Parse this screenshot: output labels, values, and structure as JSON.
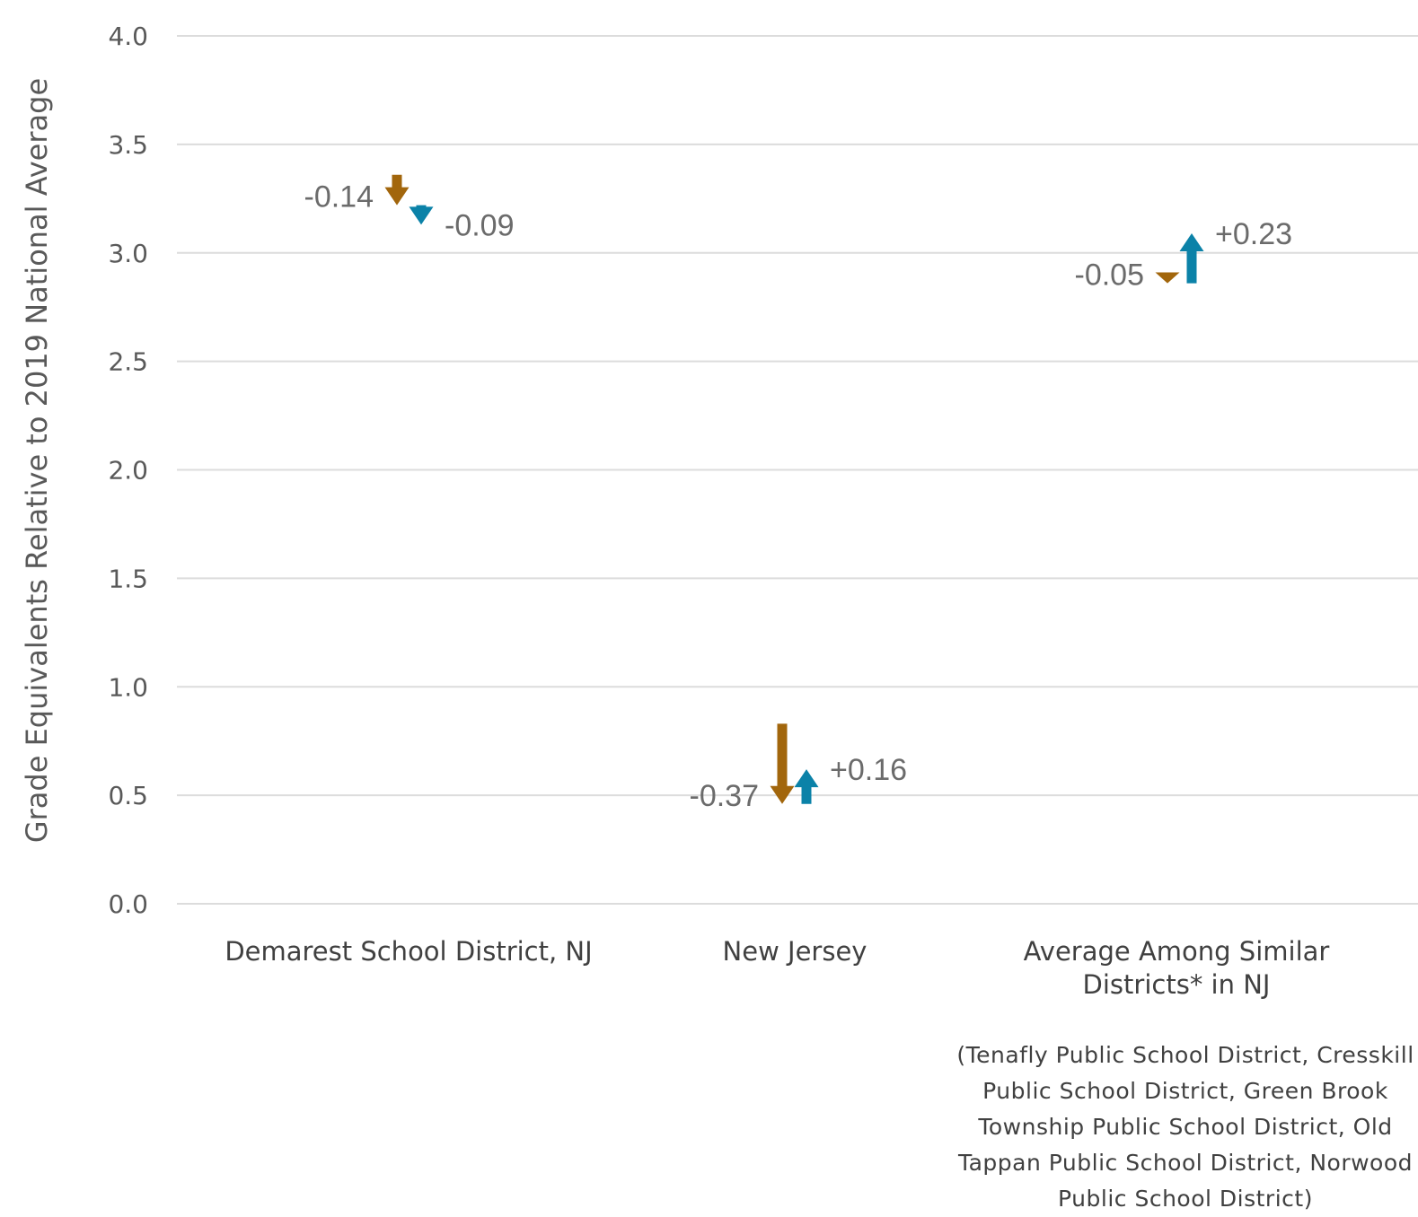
{
  "chart_data": {
    "type": "arrow",
    "ylabel": "Grade Equivalents Relative to 2019 National Average",
    "ylim": [
      0,
      4.0
    ],
    "yticks": [
      "0.0",
      "0.5",
      "1.0",
      "1.5",
      "2.0",
      "2.5",
      "3.0",
      "3.5",
      "4.0"
    ],
    "grid": true,
    "categories": [
      {
        "label_lines": [
          "Demarest School District, NJ"
        ]
      },
      {
        "label_lines": [
          "New Jersey"
        ]
      },
      {
        "label_lines": [
          "Average Among Similar",
          "Districts* in NJ"
        ]
      }
    ],
    "series": [
      {
        "color": "#a2660c",
        "start": [
          3.36,
          0.83,
          2.91
        ],
        "end": [
          3.22,
          0.46,
          2.86
        ],
        "labels": [
          "-0.14",
          "-0.37",
          "-0.05"
        ]
      },
      {
        "color": "#0b82a8",
        "start": [
          3.22,
          0.46,
          2.86
        ],
        "end": [
          3.13,
          0.62,
          3.09
        ],
        "labels": [
          "-0.09",
          "+0.16",
          "+0.23"
        ]
      }
    ]
  },
  "footnote_lines": [
    "(Tenafly Public School District, Cresskill",
    "Public School District, Green Brook",
    "Township Public School District, Old",
    "Tappan Public School District, Norwood",
    "Public School District)"
  ]
}
